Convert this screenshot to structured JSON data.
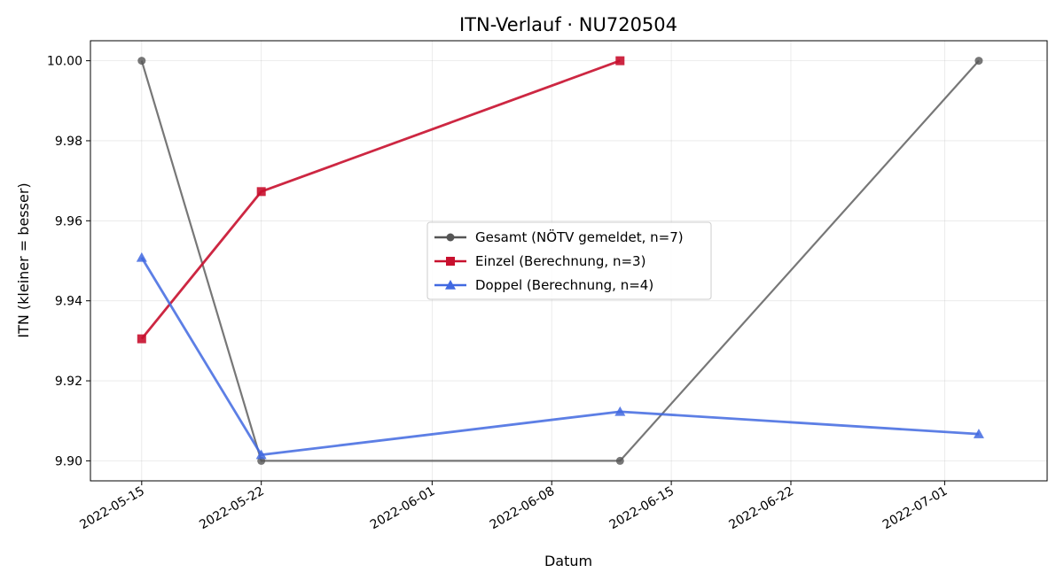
{
  "chart_data": {
    "type": "line",
    "title": "ITN-Verlauf · NU720504",
    "xlabel": "Datum",
    "ylabel": "ITN  (kleiner = besser)",
    "x_axis_type": "date",
    "xlim": [
      "2022-05-12",
      "2022-07-07"
    ],
    "ylim": [
      9.895,
      10.005
    ],
    "x_ticks": [
      "2022-05-15",
      "2022-05-22",
      "2022-06-01",
      "2022-06-08",
      "2022-06-15",
      "2022-06-22",
      "2022-07-01"
    ],
    "y_ticks": [
      9.9,
      9.92,
      9.94,
      9.96,
      9.98,
      10.0
    ],
    "grid": true,
    "legend_position": "center",
    "series": [
      {
        "name": "Gesamt (NÖTV gemeldet, n=7)",
        "color": "#555555",
        "marker": "circle",
        "points": [
          {
            "x": "2022-05-15",
            "y": 10.0
          },
          {
            "x": "2022-05-22",
            "y": 9.9
          },
          {
            "x": "2022-06-12",
            "y": 9.9
          },
          {
            "x": "2022-07-03",
            "y": 10.0
          }
        ]
      },
      {
        "name": "Einzel (Berechnung, n=3)",
        "color": "#c8102e",
        "marker": "square",
        "points": [
          {
            "x": "2022-05-15",
            "y": 9.9305
          },
          {
            "x": "2022-05-22",
            "y": 9.9673
          },
          {
            "x": "2022-06-12",
            "y": 10.0
          }
        ]
      },
      {
        "name": "Doppel (Berechnung, n=4)",
        "color": "#4169e1",
        "marker": "triangle",
        "points": [
          {
            "x": "2022-05-15",
            "y": 9.9508
          },
          {
            "x": "2022-05-22",
            "y": 9.9015
          },
          {
            "x": "2022-06-12",
            "y": 9.9123
          },
          {
            "x": "2022-07-03",
            "y": 9.9067
          }
        ]
      }
    ]
  }
}
